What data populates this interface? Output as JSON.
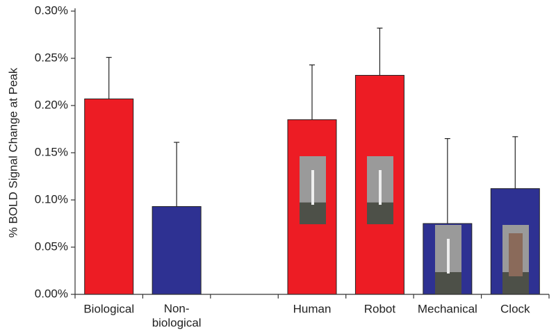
{
  "chart_data": {
    "type": "bar",
    "y_label": "% BOLD Signal Change at Peak",
    "categories": [
      "Biological",
      "Non-\nbiological",
      null,
      "Human",
      "Robot",
      "Mechanical",
      "Clock"
    ],
    "series": [
      {
        "values": [
          0.207,
          0.093,
          null,
          0.185,
          0.232,
          0.075,
          0.112
        ],
        "errors": [
          0.044,
          0.068,
          null,
          0.058,
          0.05,
          0.09,
          0.055
        ],
        "colors": [
          "#ed1c24",
          "#2e3192",
          null,
          "#ed1c24",
          "#ed1c24",
          "#2e3192",
          "#2e3192"
        ]
      }
    ],
    "ylim": [
      0,
      0.3
    ],
    "yticks": [
      {
        "value": 0,
        "label": "0.00%"
      },
      {
        "value": 0.05,
        "label": "0.05%"
      },
      {
        "value": 0.1,
        "label": "0.10%"
      },
      {
        "value": 0.15,
        "label": "0.15%"
      },
      {
        "value": 0.2,
        "label": "0.20%"
      },
      {
        "value": 0.25,
        "label": "0.25%"
      },
      {
        "value": 0.3,
        "label": "0.30%"
      }
    ]
  }
}
